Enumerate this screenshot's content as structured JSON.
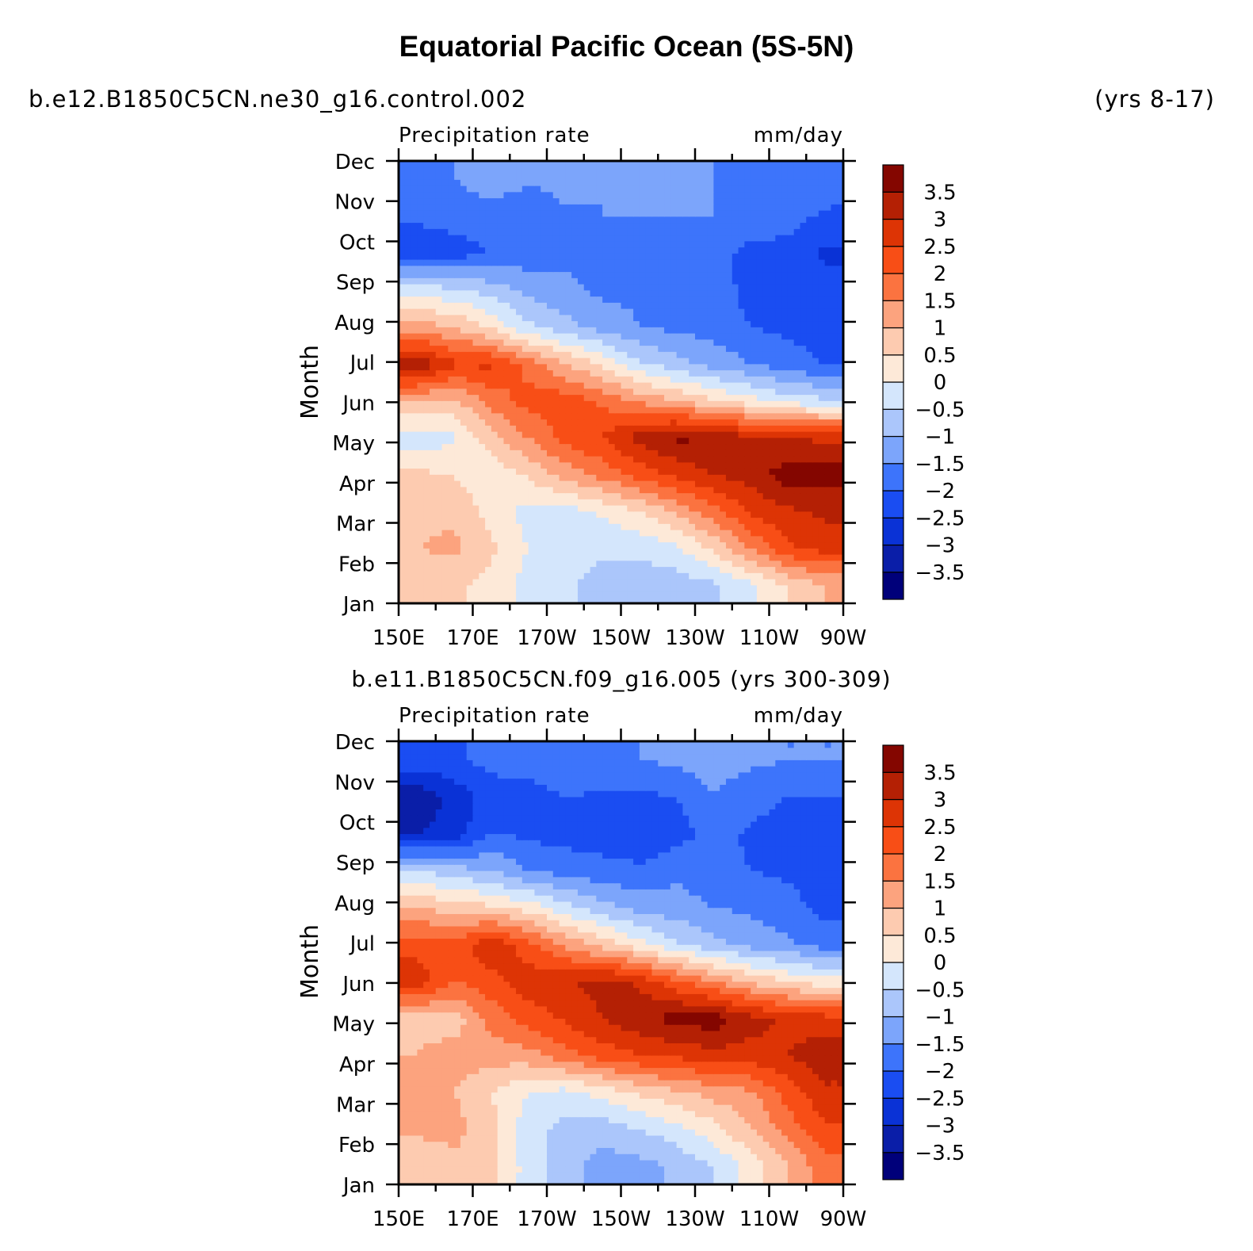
{
  "figure": {
    "title": "Equatorial Pacific Ocean (5S-5N)",
    "top_left_label": "b.e12.B1850C5CN.ne30_g16.control.002",
    "top_right_label": "(yrs 8-17)"
  },
  "chart_data": [
    {
      "type": "heatmap",
      "panel_title": "",
      "left_string": "Precipitation rate",
      "right_string": "mm/day",
      "xlabel": "",
      "ylabel": "Month",
      "x_tick_labels": [
        "150E",
        "170E",
        "170W",
        "150W",
        "130W",
        "110W",
        "90W"
      ],
      "x_range_deg_east": [
        150,
        270
      ],
      "y_tick_labels": [
        "Jan",
        "Feb",
        "Mar",
        "Apr",
        "May",
        "Jun",
        "Jul",
        "Aug",
        "Sep",
        "Oct",
        "Nov",
        "Dec"
      ],
      "z_grid_mm_per_day": [
        [
          0.6,
          0.6,
          0.3,
          -0.2,
          -0.4,
          -0.7,
          -0.8,
          -0.8,
          -0.6,
          -0.1,
          0.5,
          1.0
        ],
        [
          1.0,
          1.1,
          0.6,
          0.0,
          -0.3,
          -0.4,
          -0.4,
          -0.1,
          0.6,
          1.5,
          2.4,
          2.7
        ],
        [
          0.9,
          0.9,
          0.3,
          -0.2,
          -0.2,
          0.1,
          0.5,
          1.1,
          1.8,
          2.6,
          2.9,
          3.1
        ],
        [
          0.6,
          0.5,
          0.1,
          0.6,
          1.2,
          1.7,
          2.2,
          2.6,
          3.0,
          3.2,
          3.8,
          3.7
        ],
        [
          -0.3,
          -0.1,
          0.8,
          1.5,
          2.2,
          2.5,
          3.2,
          3.6,
          3.5,
          3.1,
          3.0,
          2.9
        ],
        [
          1.0,
          0.9,
          1.7,
          2.2,
          2.3,
          1.9,
          1.4,
          1.0,
          0.6,
          0.2,
          -0.2,
          -0.4
        ],
        [
          3.4,
          2.6,
          2.6,
          1.8,
          1.0,
          0.4,
          -0.4,
          -0.8,
          -1.2,
          -1.5,
          -1.8,
          -2.0
        ],
        [
          1.2,
          1.0,
          0.4,
          -0.4,
          -0.8,
          -1.2,
          -1.5,
          -1.6,
          -1.7,
          -2.0,
          -2.1,
          -2.2
        ],
        [
          -0.2,
          -0.4,
          -0.7,
          -1.1,
          -1.4,
          -1.6,
          -1.6,
          -1.7,
          -1.7,
          -2.2,
          -2.2,
          -2.3
        ],
        [
          -2.4,
          -2.2,
          -2.0,
          -1.8,
          -1.6,
          -1.6,
          -1.6,
          -1.6,
          -1.8,
          -2.2,
          -2.2,
          -2.6
        ],
        [
          -1.9,
          -1.8,
          -1.8,
          -2.0,
          -1.6,
          -1.5,
          -1.5,
          -1.5,
          -1.5,
          -1.6,
          -1.8,
          -2.1
        ],
        [
          -1.8,
          -1.5,
          -1.2,
          -1.4,
          -1.3,
          -1.5,
          -1.3,
          -1.4,
          -1.5,
          -1.6,
          -1.6,
          -1.7
        ]
      ],
      "colorbar": {
        "levels": [
          -3.5,
          -3,
          -2.5,
          -2,
          -1.5,
          -1,
          -0.5,
          0,
          0.5,
          1,
          1.5,
          2,
          2.5,
          3,
          3.5
        ],
        "labels": [
          "−3.5",
          "−3",
          "−2.5",
          "−2",
          "−1.5",
          "−1",
          "−0.5",
          "0",
          "0.5",
          "1",
          "1.5",
          "2",
          "2.5",
          "3",
          "3.5"
        ],
        "colors": [
          "#00007a",
          "#0a1ea8",
          "#0a32d6",
          "#1a4df2",
          "#3d74fb",
          "#7ca5fb",
          "#abc6fb",
          "#d4e6fc",
          "#fde9d8",
          "#fdcbb0",
          "#fca37e",
          "#fb7340",
          "#f84e16",
          "#dd3405",
          "#b42004",
          "#840600"
        ]
      }
    },
    {
      "type": "heatmap",
      "panel_title": "b.e11.B1850C5CN.f09_g16.005 (yrs 300-309)",
      "left_string": "Precipitation rate",
      "right_string": "mm/day",
      "xlabel": "",
      "ylabel": "Month",
      "x_tick_labels": [
        "150E",
        "170E",
        "170W",
        "150W",
        "130W",
        "110W",
        "90W"
      ],
      "x_range_deg_east": [
        150,
        270
      ],
      "y_tick_labels": [
        "Jan",
        "Feb",
        "Mar",
        "Apr",
        "May",
        "Jun",
        "Jul",
        "Aug",
        "Sep",
        "Oct",
        "Nov",
        "Dec"
      ],
      "z_grid_mm_per_day": [
        [
          0.6,
          0.8,
          0.6,
          -0.2,
          -0.8,
          -1.2,
          -1.2,
          -0.9,
          -0.5,
          0.2,
          1.0,
          1.8
        ],
        [
          1.1,
          1.2,
          0.7,
          -0.3,
          -0.7,
          -0.8,
          -0.5,
          -0.2,
          0.3,
          1.0,
          1.7,
          2.4
        ],
        [
          1.4,
          1.0,
          0.5,
          0.0,
          -0.2,
          0.2,
          0.6,
          0.9,
          1.2,
          1.4,
          2.2,
          2.9
        ],
        [
          1.0,
          1.3,
          1.2,
          1.3,
          1.8,
          2.2,
          2.5,
          2.6,
          2.8,
          2.8,
          3.0,
          3.3
        ],
        [
          0.8,
          0.7,
          1.7,
          2.2,
          2.6,
          3.0,
          3.4,
          3.7,
          3.8,
          3.2,
          2.9,
          2.7
        ],
        [
          2.8,
          2.0,
          2.3,
          2.8,
          2.9,
          3.2,
          2.9,
          2.1,
          1.5,
          0.9,
          0.5,
          0.2
        ],
        [
          2.3,
          2.2,
          2.9,
          2.2,
          1.4,
          0.8,
          0.2,
          -0.4,
          -0.8,
          -1.2,
          -1.4,
          -1.7
        ],
        [
          1.0,
          0.8,
          0.6,
          0.3,
          -0.3,
          -0.8,
          -1.2,
          -1.3,
          -1.5,
          -1.6,
          -1.8,
          -2.2
        ],
        [
          -0.5,
          -0.8,
          -1.0,
          -1.5,
          -1.7,
          -1.8,
          -1.9,
          -1.6,
          -1.8,
          -2.0,
          -2.1,
          -2.2
        ],
        [
          -3.0,
          -2.8,
          -2.0,
          -2.1,
          -2.2,
          -2.3,
          -2.4,
          -2.2,
          -1.8,
          -2.1,
          -2.2,
          -2.3
        ],
        [
          -3.4,
          -2.8,
          -2.3,
          -2.3,
          -2.0,
          -2.1,
          -2.1,
          -2.0,
          -1.5,
          -1.8,
          -2.0,
          -2.0
        ],
        [
          -2.2,
          -2.1,
          -1.8,
          -1.7,
          -1.5,
          -1.6,
          -1.5,
          -1.4,
          -1.3,
          -1.4,
          -1.5,
          -1.5
        ]
      ],
      "colorbar": {
        "levels": [
          -3.5,
          -3,
          -2.5,
          -2,
          -1.5,
          -1,
          -0.5,
          0,
          0.5,
          1,
          1.5,
          2,
          2.5,
          3,
          3.5
        ],
        "labels": [
          "−3.5",
          "−3",
          "−2.5",
          "−2",
          "−1.5",
          "−1",
          "−0.5",
          "0",
          "0.5",
          "1",
          "1.5",
          "2",
          "2.5",
          "3",
          "3.5"
        ],
        "colors": [
          "#00007a",
          "#0a1ea8",
          "#0a32d6",
          "#1a4df2",
          "#3d74fb",
          "#7ca5fb",
          "#abc6fb",
          "#d4e6fc",
          "#fde9d8",
          "#fdcbb0",
          "#fca37e",
          "#fb7340",
          "#f84e16",
          "#dd3405",
          "#b42004",
          "#840600"
        ]
      }
    }
  ]
}
